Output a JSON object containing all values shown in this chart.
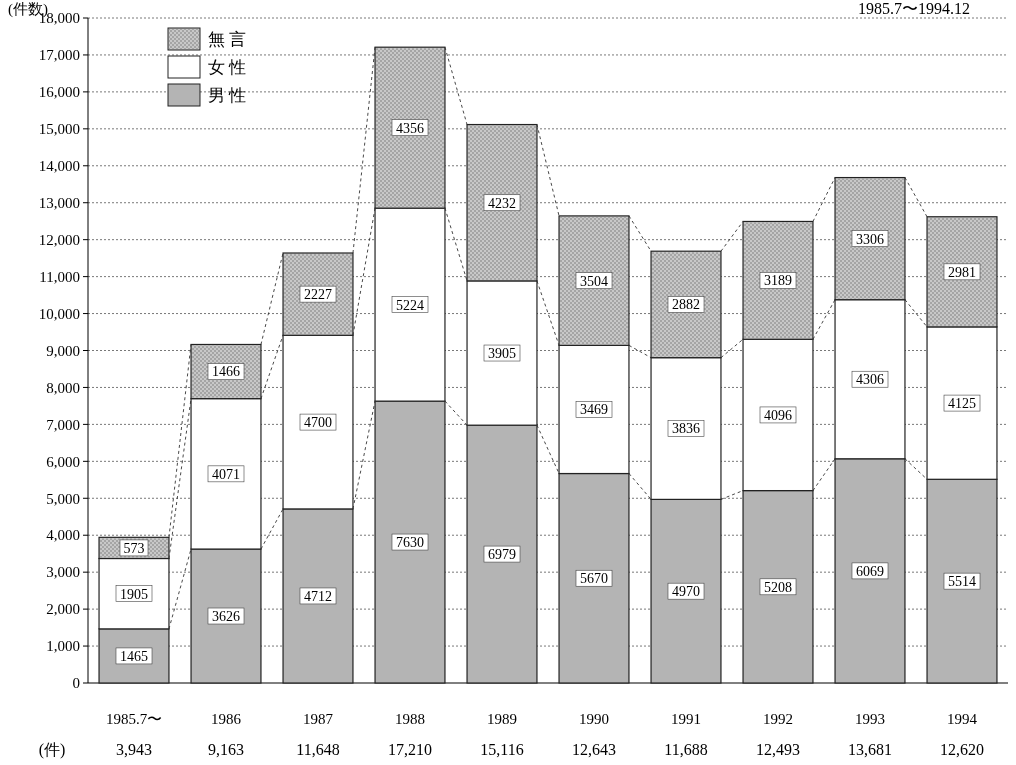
{
  "chart_data": {
    "type": "bar",
    "title": "1985.7〜1994.12",
    "ylabel": "(件数)",
    "stacked": true,
    "categories": [
      "1985.7〜",
      "1986",
      "1987",
      "1988",
      "1989",
      "1990",
      "1991",
      "1992",
      "1993",
      "1994"
    ],
    "series": [
      {
        "name": "男 性",
        "color": "#b4b4b4",
        "values": [
          1465,
          3626,
          4712,
          7630,
          6979,
          5670,
          4970,
          5208,
          6069,
          5514
        ]
      },
      {
        "name": "女 性",
        "color": "#ffffff",
        "values": [
          1905,
          4071,
          4700,
          5224,
          3905,
          3469,
          3836,
          4096,
          4306,
          4125
        ]
      },
      {
        "name": "無 言",
        "color": "#c8c8c8",
        "values": [
          573,
          1466,
          2227,
          4356,
          4232,
          3504,
          2882,
          3189,
          3306,
          2981
        ]
      }
    ],
    "ylim": [
      0,
      18000
    ],
    "yticks": [
      0,
      {
        "value": 1000,
        "label": "1,000"
      },
      {
        "value": 2000,
        "label": "2,000"
      },
      {
        "value": 3000,
        "label": "3,000"
      },
      {
        "value": 4000,
        "label": "4,000"
      },
      {
        "value": 5000,
        "label": "5,000"
      },
      {
        "value": 6000,
        "label": "6,000"
      },
      {
        "value": 7000,
        "label": "7,000"
      },
      {
        "value": 8000,
        "label": "8,000"
      },
      {
        "value": 9000,
        "label": "9,000"
      },
      {
        "value": 10000,
        "label": "10,000"
      },
      {
        "value": 11000,
        "label": "11,000"
      },
      {
        "value": 12000,
        "label": "12,000"
      },
      {
        "value": 13000,
        "label": "13,000"
      },
      {
        "value": 14000,
        "label": "14,000"
      },
      {
        "value": 15000,
        "label": "15,000"
      },
      {
        "value": 16000,
        "label": "16,000"
      },
      {
        "value": 17000,
        "label": "17,000"
      },
      {
        "value": 18000,
        "label": "18,000"
      }
    ],
    "grid": "y",
    "legend": "top left",
    "data_labels": true,
    "annotations": [
      "(件)",
      "3,943",
      "9,163",
      "11,648",
      "17,210",
      "15,116",
      "12,643",
      "11,688",
      "12,493",
      "13,681",
      "12,620"
    ]
  }
}
